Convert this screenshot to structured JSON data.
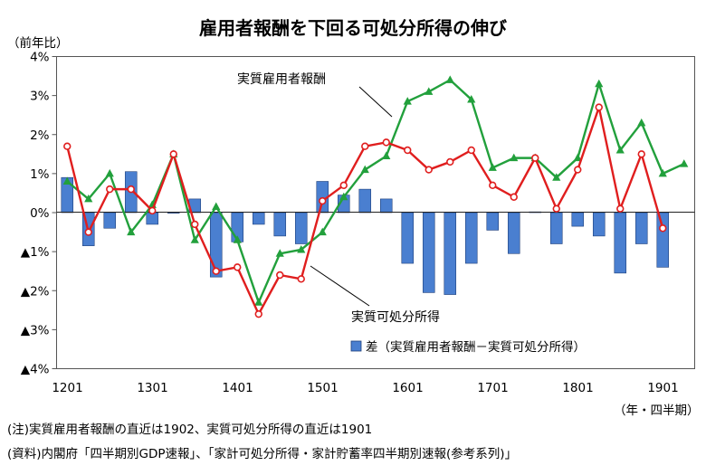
{
  "chart_data": {
    "type": "bar+line",
    "title": "雇用者報酬を下回る可処分所得の伸び",
    "ylabel": "（前年比）",
    "xlabel": "（年・四半期）",
    "ylim": [
      -4,
      4
    ],
    "yticks": [
      4,
      3,
      2,
      1,
      0,
      -1,
      -2,
      -3,
      -4
    ],
    "ytick_labels": [
      "4%",
      "3%",
      "2%",
      "1%",
      "0%",
      "▲1%",
      "▲2%",
      "▲3%",
      "▲4%"
    ],
    "xtick_labels": [
      {
        "label": "1201",
        "index": 0
      },
      {
        "label": "1301",
        "index": 4
      },
      {
        "label": "1401",
        "index": 8
      },
      {
        "label": "1501",
        "index": 12
      },
      {
        "label": "1601",
        "index": 16
      },
      {
        "label": "1701",
        "index": 20
      },
      {
        "label": "1801",
        "index": 24
      },
      {
        "label": "1901",
        "index": 28
      }
    ],
    "quarters": 30,
    "series": [
      {
        "name": "実質雇用者報酬",
        "kind": "line",
        "color": "#22a03c",
        "marker": "triangle",
        "values": [
          0.8,
          0.35,
          1.0,
          -0.5,
          0.2,
          1.5,
          -0.7,
          0.15,
          -0.7,
          -2.3,
          -1.05,
          -0.95,
          -0.5,
          0.4,
          1.1,
          1.45,
          2.85,
          3.1,
          3.4,
          2.9,
          1.15,
          1.4,
          1.4,
          0.9,
          1.4,
          3.3,
          1.6,
          2.3,
          1.0,
          1.25
        ]
      },
      {
        "name": "実質可処分所得",
        "kind": "line",
        "color": "#e01e1e",
        "marker": "circle",
        "values": [
          1.7,
          -0.5,
          0.6,
          0.6,
          0.05,
          1.5,
          -0.3,
          -1.5,
          -1.4,
          -2.6,
          -1.6,
          -1.7,
          0.3,
          0.7,
          1.7,
          1.8,
          1.6,
          1.1,
          1.3,
          1.6,
          0.7,
          0.4,
          1.4,
          0.1,
          1.1,
          2.7,
          0.1,
          1.5,
          -0.4,
          null
        ]
      },
      {
        "name": "差（実質雇用者報酬－実質可処分所得）",
        "kind": "bar",
        "color": "#4a7fd0",
        "values": [
          0.9,
          -0.85,
          -0.4,
          1.05,
          -0.3,
          0.0,
          0.35,
          -1.65,
          -0.75,
          -0.3,
          -0.6,
          -0.8,
          0.8,
          0.45,
          0.6,
          0.35,
          -1.3,
          -2.05,
          -2.1,
          -1.3,
          -0.45,
          -1.05,
          0.02,
          -0.8,
          -0.35,
          -0.6,
          -1.55,
          -0.8,
          -1.4,
          null
        ]
      }
    ],
    "annotations": [
      {
        "text": "実質雇用者報酬",
        "series": 0
      },
      {
        "text": "実質可処分所得",
        "series": 1
      }
    ],
    "legend": {
      "position": "bottom-right",
      "text": "差（実質雇用者報酬－実質可処分所得）"
    },
    "grid": false
  },
  "notes": {
    "note1": "(注)実質雇用者報酬の直近は1902、実質可処分所得の直近は1901",
    "note2": "(資料)内閣府「四半期別GDP速報」、「家計可処分所得・家計貯蓄率四半期別速報(参考系列)」"
  }
}
